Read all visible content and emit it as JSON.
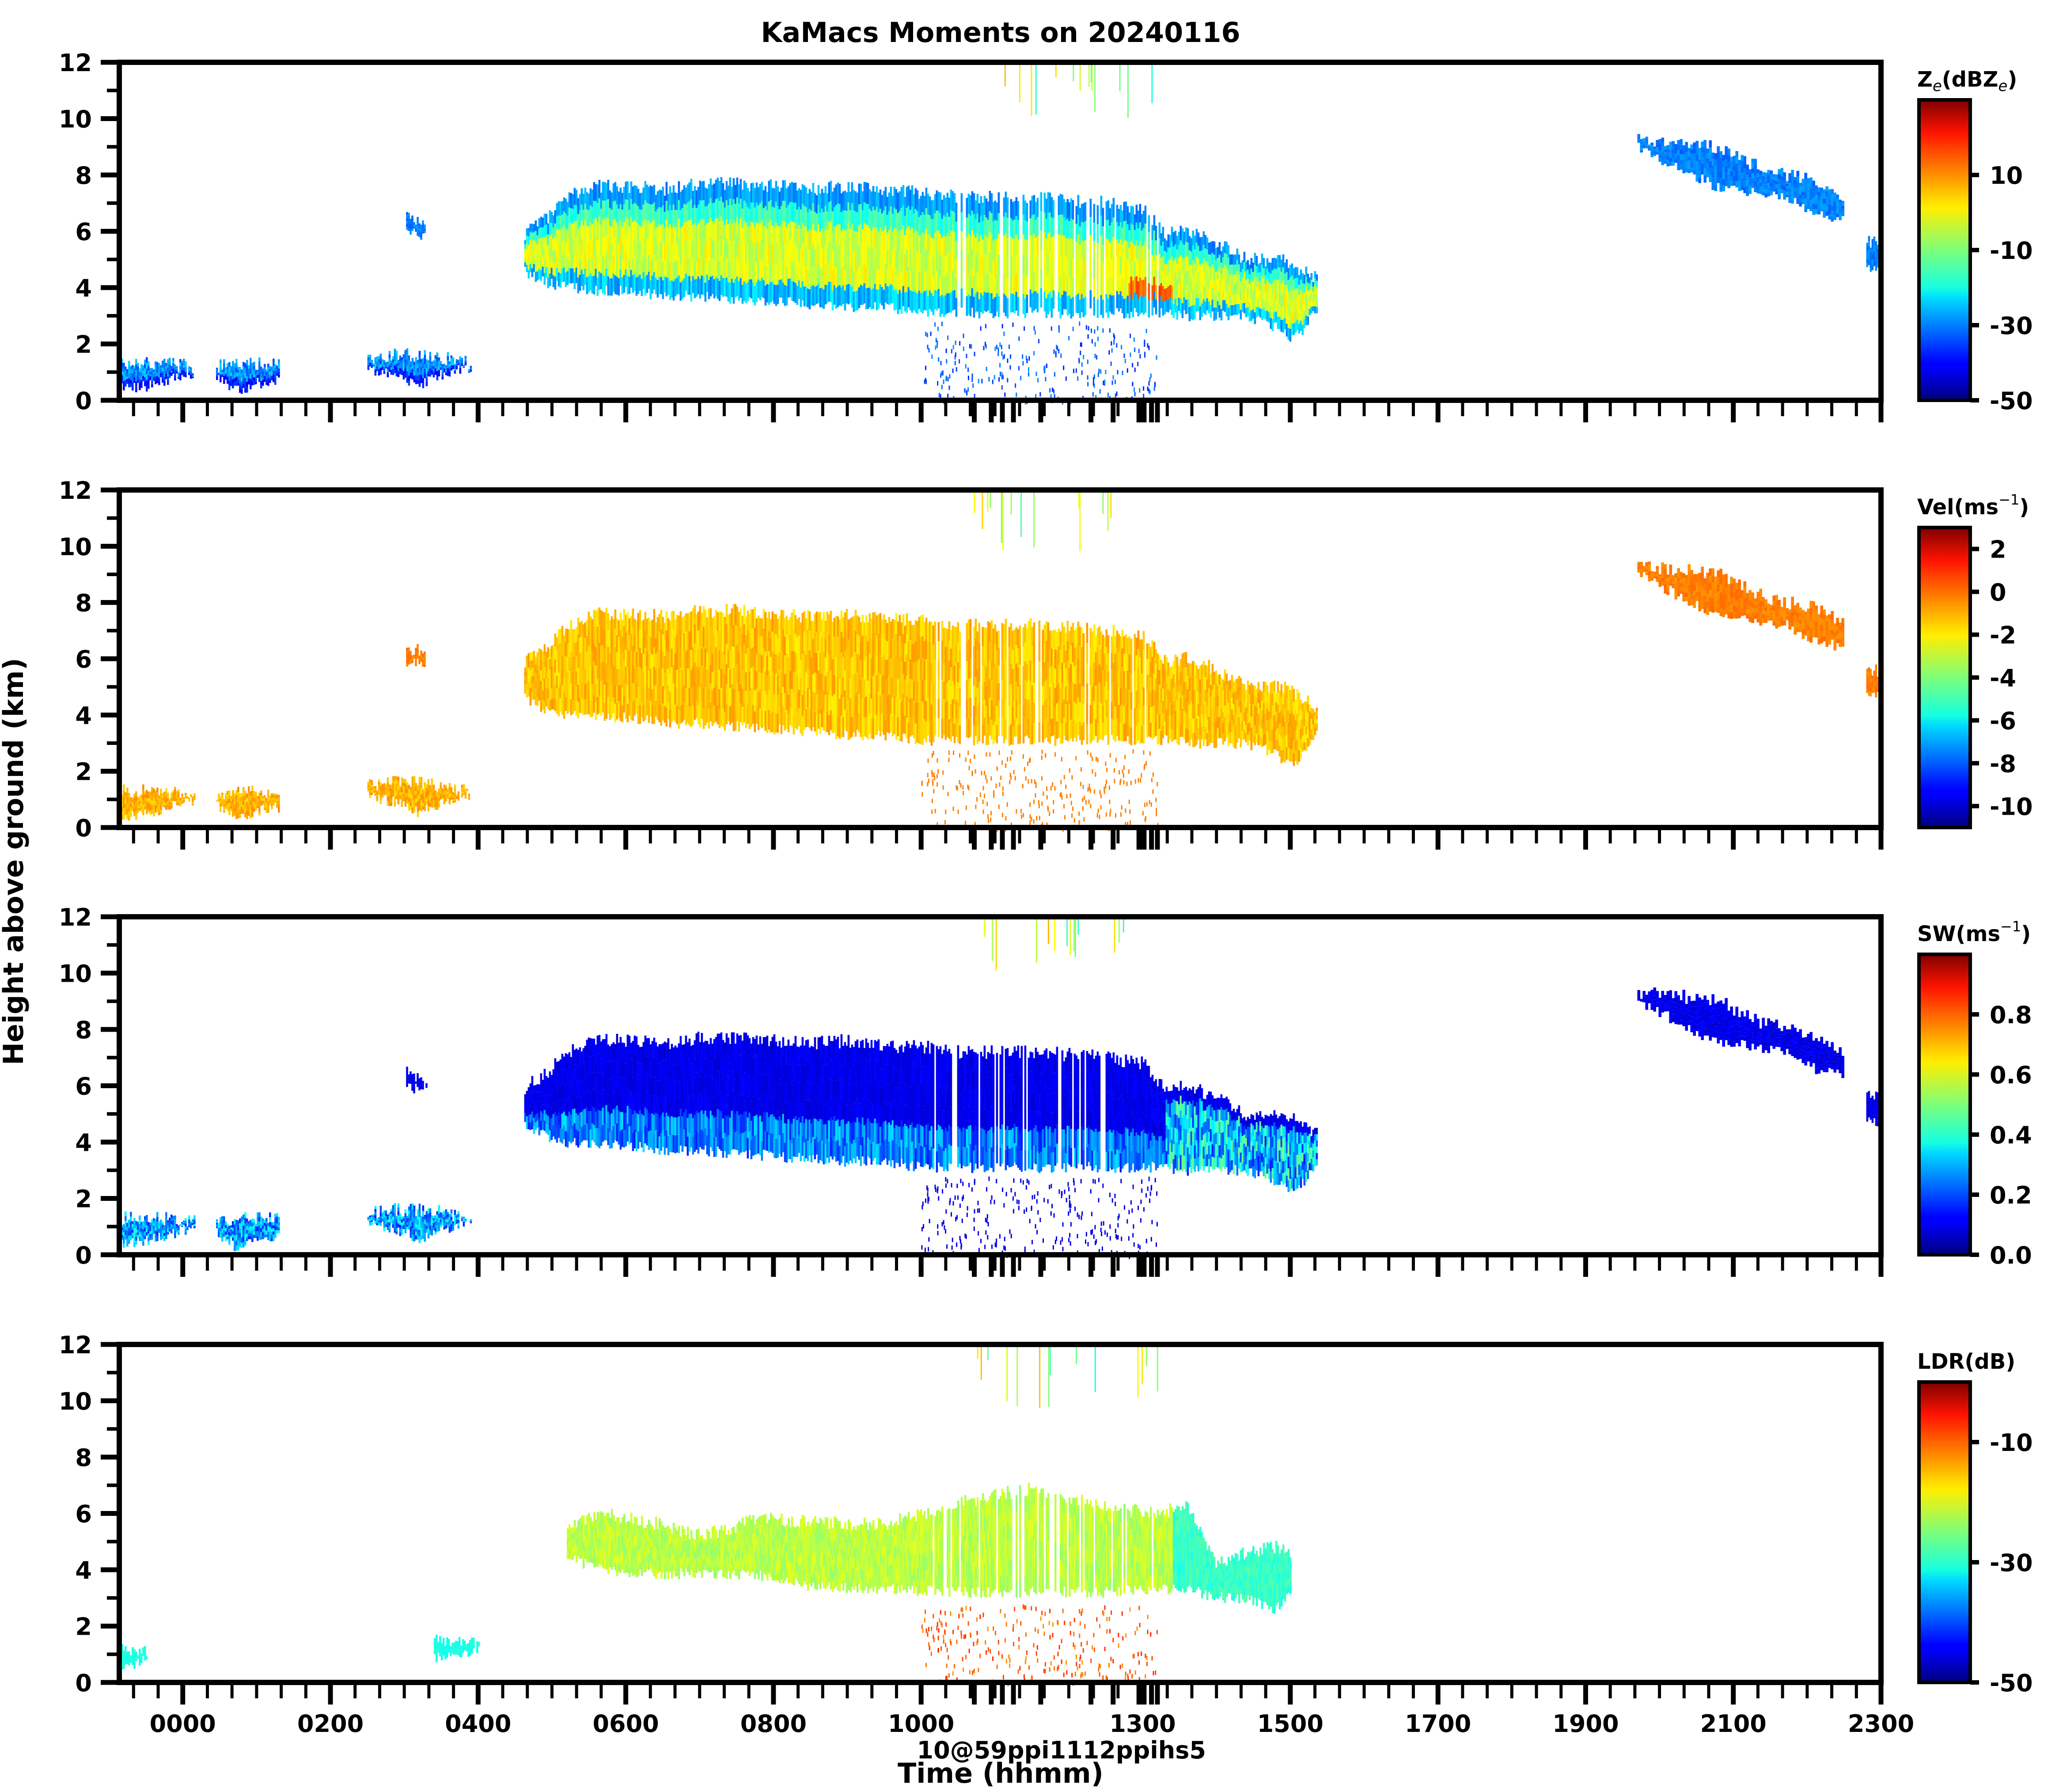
{
  "chart_data": {
    "type": "heatmap",
    "title": "KaMacs Moments on 20240116",
    "xlabel": "Time (hhmm)",
    "ylabel": "Height above ground (km)",
    "xlim_hours": [
      -0.86,
      23.0
    ],
    "ylim": [
      0,
      12
    ],
    "grid": false,
    "x_major_ticks": [
      {
        "hour": 0,
        "label": "0000"
      },
      {
        "hour": 2,
        "label": "0200"
      },
      {
        "hour": 4,
        "label": "0400"
      },
      {
        "hour": 6,
        "label": "0600"
      },
      {
        "hour": 8,
        "label": "0800"
      },
      {
        "hour": 10,
        "label": "1000"
      },
      {
        "hour": 13,
        "label": "1300"
      },
      {
        "hour": 15,
        "label": "1500"
      },
      {
        "hour": 17,
        "label": "1700"
      },
      {
        "hour": 19,
        "label": "1900"
      },
      {
        "hour": 21,
        "label": "2100"
      },
      {
        "hour": 23,
        "label": "2300"
      }
    ],
    "x_overlapping_labels_text": "10@59ppi1112ppihs5",
    "x_scan_marker_hours": [
      10.72,
      10.95,
      11.1,
      11.25,
      11.62,
      12.3,
      12.6,
      12.95,
      13.02,
      13.12,
      13.2
    ],
    "y_ticks": [
      0,
      2,
      4,
      6,
      8,
      10,
      12
    ],
    "panels": [
      {
        "id": "ze",
        "colorbar_label": "Ze(dBZe)",
        "colorbar_label_main": "Z",
        "colorbar_label_sub": "e",
        "colorbar_label_rest": "(dBZ",
        "colorbar_label_sub2": "e",
        "colorbar_label_end": ")",
        "colormap": "jet",
        "vmin": -50,
        "vmax": 30,
        "colorbar_ticks": [
          10,
          -10,
          -30,
          -50
        ],
        "main_fill_value": -5
      },
      {
        "id": "vel",
        "colorbar_label": "Vel(ms-1)",
        "colorbar_label_main": "Vel(ms",
        "colorbar_label_sup": "−1",
        "colorbar_label_end": ")",
        "colormap": "jet",
        "vmin": -11,
        "vmax": 3,
        "colorbar_ticks": [
          2,
          0,
          -2,
          -4,
          -6,
          -8,
          -10
        ],
        "main_fill_value": -1
      },
      {
        "id": "sw",
        "colorbar_label": "SW(ms-1)",
        "colorbar_label_main": "SW(ms",
        "colorbar_label_sup": "−1",
        "colorbar_label_end": ")",
        "colormap": "jet",
        "vmin": 0,
        "vmax": 1.0,
        "colorbar_ticks": [
          0.8,
          0.6,
          0.4,
          0.2,
          0.0
        ],
        "colorbar_tick_labels": [
          "0.8",
          "0.6",
          "0.4",
          "0.2",
          "0.0"
        ],
        "main_fill_value": 0.1
      },
      {
        "id": "ldr",
        "colorbar_label": "LDR(dB)",
        "colorbar_label_main": "LDR(dB)",
        "colormap": "jet",
        "vmin": -50,
        "vmax": 0,
        "colorbar_ticks": [
          -10,
          -30,
          -50
        ],
        "main_fill_value": -26
      }
    ],
    "features": [
      {
        "name": "low cloud 1",
        "t_start": -0.86,
        "t_end": 0.15,
        "z_bottom": 0.4,
        "z_top": 1.3
      },
      {
        "name": "low cloud 2",
        "t_start": 0.4,
        "t_end": 1.3,
        "z_bottom": 0.3,
        "z_top": 1.3
      },
      {
        "name": "low cloud 3",
        "t_start": 2.5,
        "t_end": 3.9,
        "z_bottom": 0.5,
        "z_top": 1.6
      },
      {
        "name": "small cloud",
        "t_start": 3.0,
        "t_end": 3.3,
        "z_bottom": 5.9,
        "z_top": 6.5
      },
      {
        "name": "main stratiform layer",
        "t_start": 4.6,
        "t_end": 15.3,
        "z_bottom": 3.0,
        "z_top": 8.0
      },
      {
        "name": "high cirrus streaks",
        "t_start": 19.6,
        "t_end": 22.7,
        "z_bottom": 6.4,
        "z_top": 9.4
      },
      {
        "name": "edge cloud",
        "t_start": 22.8,
        "t_end": 23.0,
        "z_bottom": 4.7,
        "z_top": 5.6
      }
    ]
  }
}
